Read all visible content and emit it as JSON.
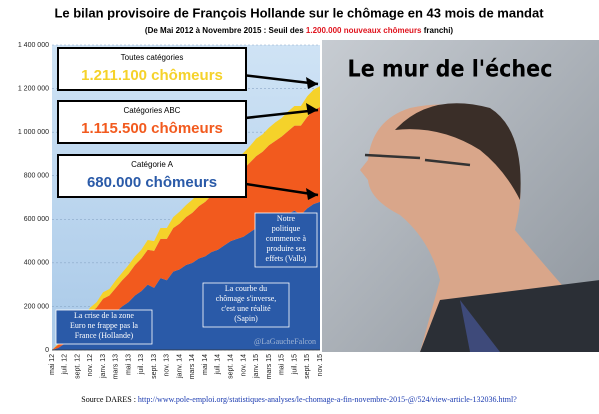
{
  "chart_data": {
    "type": "area",
    "stacked": true,
    "title": "Le bilan provisoire de François Hollande sur le chômage en 43 mois de mandat",
    "subtitle": [
      "(De Mai 2012 à Novembre 2015 : Seuil des ",
      "1.200.000 nouveaux chômeurs",
      " franchi)"
    ],
    "headline": "Le mur de l'échec",
    "boxes": [
      {
        "title": "Toutes catégories",
        "value": "1.211.100 chômeurs",
        "color": "#f5d22a"
      },
      {
        "title": "Catégories ABC",
        "value": "1.115.500 chômeurs",
        "color": "#f25a1e"
      },
      {
        "title": "Catégorie A",
        "value": "680.000 chômeurs",
        "color": "#2a5aa8"
      }
    ],
    "annotations": [
      [
        "Notre",
        "politique",
        "commence à",
        "produire ses",
        "effets (Valls)"
      ],
      [
        "La courbe du",
        "chômage s'inverse,",
        "c'est une réalité",
        "(Sapin)"
      ],
      [
        "La crise de la zone",
        "Euro ne frappe pas la",
        "France (Hollande)"
      ]
    ],
    "credit": "@LaGaucheFalcon",
    "source": [
      "Source DARES : ",
      "http://www.pole-emploi.org/statistiques-analyses/le-chomage-a-fin-novembre-2015-@/524/view-article-132036.html?"
    ],
    "categories": [
      "mai 12",
      null,
      "juil. 12",
      null,
      "sept. 12",
      null,
      "nov. 12",
      null,
      "janv. 13",
      null,
      "mars 13",
      null,
      "mai 13",
      null,
      "juil. 13",
      null,
      "sept. 13",
      null,
      "nov. 13",
      null,
      "janv. 14",
      null,
      "mars 14",
      null,
      "mai 14",
      null,
      "juil. 14",
      null,
      "sept. 14",
      null,
      "nov. 14",
      null,
      "janv. 15",
      null,
      "mars 15",
      null,
      "mai 15",
      null,
      "juil. 15",
      null,
      "sept. 15",
      null,
      "nov. 15"
    ],
    "series": [
      {
        "color": "#2a5aa8",
        "values": [
          0,
          10000,
          30000,
          45000,
          60000,
          80000,
          95000,
          110000,
          140000,
          150000,
          175000,
          200000,
          220000,
          250000,
          270000,
          300000,
          285000,
          330000,
          320000,
          360000,
          370000,
          390000,
          400000,
          420000,
          430000,
          450000,
          460000,
          480000,
          500000,
          510000,
          520000,
          540000,
          560000,
          570000,
          590000,
          600000,
          610000,
          625000,
          640000,
          620000,
          650000,
          670000,
          680000
        ]
      },
      {
        "color": "#f25a1e",
        "values": [
          0,
          15000,
          25000,
          40000,
          50000,
          60000,
          75000,
          85000,
          95000,
          100000,
          110000,
          120000,
          130000,
          140000,
          150000,
          160000,
          170000,
          180000,
          190000,
          200000,
          210000,
          220000,
          230000,
          240000,
          250000,
          260000,
          270000,
          280000,
          290000,
          300000,
          310000,
          320000,
          330000,
          340000,
          350000,
          360000,
          370000,
          380000,
          390000,
          410000,
          420000,
          430000,
          435500
        ]
      },
      {
        "color": "#f5d22a",
        "values": [
          0,
          5000,
          10000,
          15000,
          20000,
          20000,
          25000,
          25000,
          30000,
          30000,
          35000,
          35000,
          40000,
          40000,
          40000,
          45000,
          45000,
          50000,
          50000,
          50000,
          55000,
          55000,
          60000,
          60000,
          60000,
          65000,
          65000,
          70000,
          70000,
          70000,
          75000,
          75000,
          80000,
          80000,
          80000,
          85000,
          85000,
          90000,
          90000,
          90000,
          95000,
          95000,
          95600
        ]
      }
    ],
    "ylim": [
      0,
      1400000
    ],
    "yticks": [
      0,
      {
        "value": 200000,
        "label": "200 000"
      },
      {
        "value": 400000,
        "label": "400 000"
      },
      {
        "value": 600000,
        "label": "600 000"
      },
      {
        "value": 800000,
        "label": "800 000"
      },
      {
        "value": 1000000,
        "label": "1 000 000"
      },
      {
        "value": 1200000,
        "label": "1 200 000"
      },
      {
        "value": 1400000,
        "label": "1 400 000"
      }
    ],
    "grid": true
  }
}
